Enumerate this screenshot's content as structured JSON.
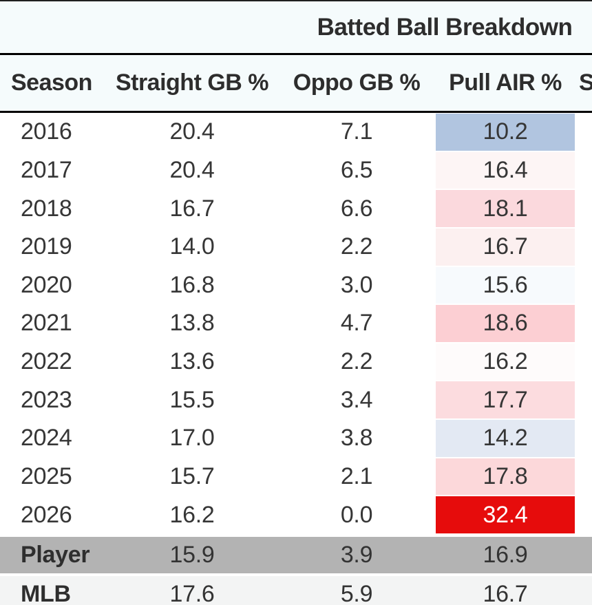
{
  "title": "Batted Ball Breakdown",
  "columns": {
    "season": "Season",
    "straight_gb": "Straight GB %",
    "oppo_gb": "Oppo GB %",
    "pull_air": "Pull AIR %",
    "next_partial": "S"
  },
  "rows": [
    {
      "season": "2016",
      "straight_gb": "20.4",
      "oppo_gb": "7.1",
      "pull_air": "10.2",
      "pull_air_bg": "#b1c5e0"
    },
    {
      "season": "2017",
      "straight_gb": "20.4",
      "oppo_gb": "6.5",
      "pull_air": "16.4",
      "pull_air_bg": "#fdf5f5"
    },
    {
      "season": "2018",
      "straight_gb": "16.7",
      "oppo_gb": "6.6",
      "pull_air": "18.1",
      "pull_air_bg": "#fbd9dd"
    },
    {
      "season": "2019",
      "straight_gb": "14.0",
      "oppo_gb": "2.2",
      "pull_air": "16.7",
      "pull_air_bg": "#fcf0f0"
    },
    {
      "season": "2020",
      "straight_gb": "16.8",
      "oppo_gb": "3.0",
      "pull_air": "15.6",
      "pull_air_bg": "#f7fafd"
    },
    {
      "season": "2021",
      "straight_gb": "13.8",
      "oppo_gb": "4.7",
      "pull_air": "18.6",
      "pull_air_bg": "#fccfd3"
    },
    {
      "season": "2022",
      "straight_gb": "13.6",
      "oppo_gb": "2.2",
      "pull_air": "16.2",
      "pull_air_bg": "#fefbfb"
    },
    {
      "season": "2023",
      "straight_gb": "15.5",
      "oppo_gb": "3.4",
      "pull_air": "17.7",
      "pull_air_bg": "#fcdcdf"
    },
    {
      "season": "2024",
      "straight_gb": "17.0",
      "oppo_gb": "3.8",
      "pull_air": "14.2",
      "pull_air_bg": "#e3e9f3"
    },
    {
      "season": "2025",
      "straight_gb": "15.7",
      "oppo_gb": "2.1",
      "pull_air": "17.8",
      "pull_air_bg": "#fcd8da"
    },
    {
      "season": "2026",
      "straight_gb": "16.2",
      "oppo_gb": "0.0",
      "pull_air": "32.4",
      "pull_air_bg": "#e60c0c",
      "pull_air_fg": "#ffffff"
    }
  ],
  "summary_rows": [
    {
      "label": "Player",
      "straight_gb": "15.9",
      "oppo_gb": "3.9",
      "pull_air": "16.9",
      "row_bg": "#b3b3b3"
    },
    {
      "label": "MLB",
      "straight_gb": "17.6",
      "oppo_gb": "5.9",
      "pull_air": "16.7",
      "row_bg": "#f3f4f4"
    }
  ],
  "colors": {
    "band_bg": "#f5fbfc",
    "divider": "#000000",
    "data_text": "#363636",
    "header_text": "#2d2d2d",
    "player_row_bg": "#b3b3b3",
    "mlb_row_bg": "#f3f4f4",
    "max_heat": "#e60c0c",
    "min_heat": "#b1c5e0"
  }
}
